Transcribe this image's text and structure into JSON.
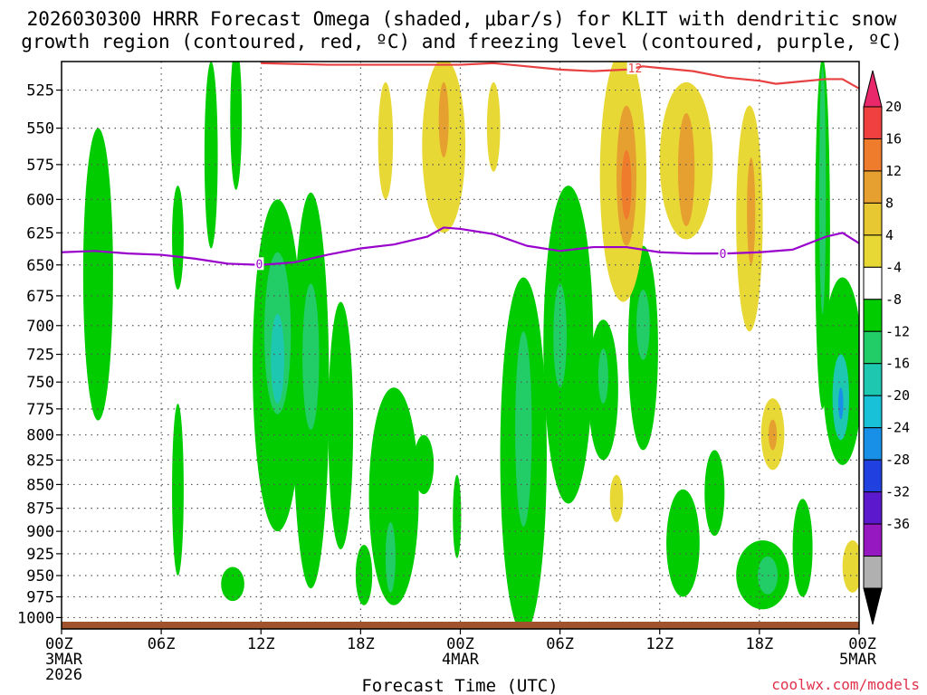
{
  "chart_data": {
    "type": "heatmap",
    "title_line1": "2026030300 HRRR Forecast Omega (shaded, μbar/s) for KLIT with dendritic snow",
    "title_line2": "growth region (contoured, red, ºC) and freezing level (contoured, purple, ºC)",
    "xlabel": "Forecast Time (UTC)",
    "credit": "coolwx.com/models",
    "y_ticks": [
      525,
      550,
      575,
      600,
      625,
      650,
      675,
      700,
      725,
      750,
      775,
      800,
      825,
      850,
      875,
      900,
      925,
      950,
      975,
      1000
    ],
    "y_range_hpa": [
      507,
      1014
    ],
    "x_range_hours": [
      0,
      48
    ],
    "x_ticks": [
      {
        "hour": 0,
        "line1": "00Z",
        "line2": "3MAR",
        "line3": "2026"
      },
      {
        "hour": 6,
        "line1": "06Z",
        "line2": "",
        "line3": ""
      },
      {
        "hour": 12,
        "line1": "12Z",
        "line2": "",
        "line3": ""
      },
      {
        "hour": 18,
        "line1": "18Z",
        "line2": "",
        "line3": ""
      },
      {
        "hour": 24,
        "line1": "00Z",
        "line2": "4MAR",
        "line3": ""
      },
      {
        "hour": 30,
        "line1": "06Z",
        "line2": "",
        "line3": ""
      },
      {
        "hour": 36,
        "line1": "12Z",
        "line2": "",
        "line3": ""
      },
      {
        "hour": 42,
        "line1": "18Z",
        "line2": "",
        "line3": ""
      },
      {
        "hour": 48,
        "line1": "00Z",
        "line2": "5MAR",
        "line3": ""
      }
    ],
    "colorbar_labels": [
      20,
      16,
      12,
      8,
      4,
      -4,
      -8,
      -12,
      -16,
      -20,
      -24,
      -28,
      -32,
      -36
    ],
    "colorbar_colors": [
      "#e8286a",
      "#f04040",
      "#ee7c2c",
      "#e6a030",
      "#e8c832",
      "#e8d836",
      "#ffffff",
      "#00cc00",
      "#22cc66",
      "#1ec8b0",
      "#18c0d8",
      "#1890e8",
      "#2040e0",
      "#5c18cc",
      "#9618c0",
      "#b0b0b0",
      "#000000"
    ],
    "omega_colors": {
      "rise_weak": "#00cc00",
      "rise_mod": "#22cc66",
      "rise_str": "#1ec8b0",
      "rise_vstr": "#18c0d8",
      "rise_max": "#1890e8",
      "sink_weak": "#e8d836",
      "sink_mod": "#e6a030",
      "sink_str": "#ee7c2c"
    },
    "freezing_level": {
      "color": "#9900cc",
      "label": "0",
      "points": [
        [
          0,
          640
        ],
        [
          2,
          639
        ],
        [
          4,
          641
        ],
        [
          6,
          642
        ],
        [
          8,
          645
        ],
        [
          10,
          649
        ],
        [
          12,
          650
        ],
        [
          14,
          648
        ],
        [
          16,
          642
        ],
        [
          18,
          637
        ],
        [
          20,
          634
        ],
        [
          22,
          628
        ],
        [
          23,
          621
        ],
        [
          24,
          622
        ],
        [
          26,
          626
        ],
        [
          28,
          635
        ],
        [
          30,
          639
        ],
        [
          32,
          636
        ],
        [
          34,
          636
        ],
        [
          36,
          640
        ],
        [
          38,
          641
        ],
        [
          40,
          641
        ],
        [
          42,
          640
        ],
        [
          44,
          638
        ],
        [
          46,
          628
        ],
        [
          47,
          625
        ],
        [
          48,
          633
        ]
      ],
      "label_points": [
        [
          11.9,
          649
        ],
        [
          39.8,
          641
        ]
      ]
    },
    "dgz_contour": {
      "color": "#e84040",
      "label": "-12",
      "points": [
        [
          12,
          508
        ],
        [
          16,
          509
        ],
        [
          20,
          509
        ],
        [
          24,
          509
        ],
        [
          26,
          508
        ],
        [
          28,
          510
        ],
        [
          30,
          512
        ],
        [
          32,
          513
        ],
        [
          34,
          512
        ],
        [
          35,
          510
        ],
        [
          36,
          511
        ],
        [
          38,
          513
        ],
        [
          40,
          517
        ],
        [
          42,
          519
        ],
        [
          43,
          521
        ],
        [
          44,
          520
        ],
        [
          46,
          518
        ],
        [
          47,
          518
        ],
        [
          48,
          524
        ]
      ],
      "label_points": [
        [
          34.3,
          511
        ]
      ]
    },
    "omega_regions": [
      {
        "level": "rise_weak",
        "hour": 2.2,
        "p_center": 668,
        "p_halfwidth": 118,
        "h_halfwidth": 0.9
      },
      {
        "level": "rise_weak",
        "hour": 7.0,
        "p_center": 630,
        "p_halfwidth": 40,
        "h_halfwidth": 0.35
      },
      {
        "level": "rise_weak",
        "hour": 7.0,
        "p_center": 860,
        "p_halfwidth": 90,
        "h_halfwidth": 0.35
      },
      {
        "level": "rise_weak",
        "hour": 9.0,
        "p_center": 572,
        "p_halfwidth": 65,
        "h_halfwidth": 0.4
      },
      {
        "level": "rise_weak",
        "hour": 10.5,
        "p_center": 545,
        "p_halfwidth": 48,
        "h_halfwidth": 0.35
      },
      {
        "level": "rise_weak",
        "hour": 10.3,
        "p_center": 960,
        "p_halfwidth": 20,
        "h_halfwidth": 0.7
      },
      {
        "level": "rise_weak",
        "hour": 13.0,
        "p_center": 750,
        "p_halfwidth": 150,
        "h_halfwidth": 1.5
      },
      {
        "level": "rise_mod",
        "hour": 13.0,
        "p_center": 710,
        "p_halfwidth": 70,
        "h_halfwidth": 0.8
      },
      {
        "level": "rise_str",
        "hour": 13.0,
        "p_center": 730,
        "p_halfwidth": 40,
        "h_halfwidth": 0.4
      },
      {
        "level": "rise_weak",
        "hour": 15.0,
        "p_center": 780,
        "p_halfwidth": 185,
        "h_halfwidth": 1.1
      },
      {
        "level": "rise_mod",
        "hour": 15.0,
        "p_center": 730,
        "p_halfwidth": 65,
        "h_halfwidth": 0.5
      },
      {
        "level": "rise_weak",
        "hour": 16.8,
        "p_center": 800,
        "p_halfwidth": 120,
        "h_halfwidth": 0.75
      },
      {
        "level": "rise_weak",
        "hour": 20.0,
        "p_center": 870,
        "p_halfwidth": 115,
        "h_halfwidth": 1.5
      },
      {
        "level": "rise_mod",
        "hour": 19.8,
        "p_center": 930,
        "p_halfwidth": 40,
        "h_halfwidth": 0.3
      },
      {
        "level": "rise_weak",
        "hour": 21.8,
        "p_center": 830,
        "p_halfwidth": 30,
        "h_halfwidth": 0.6
      },
      {
        "level": "rise_weak",
        "hour": 18.2,
        "p_center": 950,
        "p_halfwidth": 35,
        "h_halfwidth": 0.5
      },
      {
        "level": "rise_weak",
        "hour": 23.8,
        "p_center": 885,
        "p_halfwidth": 45,
        "h_halfwidth": 0.25
      },
      {
        "level": "rise_weak",
        "hour": 27.8,
        "p_center": 840,
        "p_halfwidth": 180,
        "h_halfwidth": 1.4
      },
      {
        "level": "rise_mod",
        "hour": 27.8,
        "p_center": 800,
        "p_halfwidth": 95,
        "h_halfwidth": 0.5
      },
      {
        "level": "rise_weak",
        "hour": 30.5,
        "p_center": 730,
        "p_halfwidth": 140,
        "h_halfwidth": 1.5
      },
      {
        "level": "rise_mod",
        "hour": 30.0,
        "p_center": 710,
        "p_halfwidth": 45,
        "h_halfwidth": 0.4
      },
      {
        "level": "rise_weak",
        "hour": 32.6,
        "p_center": 760,
        "p_halfwidth": 65,
        "h_halfwidth": 0.9
      },
      {
        "level": "rise_mod",
        "hour": 32.6,
        "p_center": 745,
        "p_halfwidth": 25,
        "h_halfwidth": 0.3
      },
      {
        "level": "rise_weak",
        "hour": 35.0,
        "p_center": 725,
        "p_halfwidth": 90,
        "h_halfwidth": 0.9
      },
      {
        "level": "rise_mod",
        "hour": 35.0,
        "p_center": 700,
        "p_halfwidth": 30,
        "h_halfwidth": 0.4
      },
      {
        "level": "rise_weak",
        "hour": 37.4,
        "p_center": 915,
        "p_halfwidth": 60,
        "h_halfwidth": 1.0
      },
      {
        "level": "rise_weak",
        "hour": 39.3,
        "p_center": 860,
        "p_halfwidth": 45,
        "h_halfwidth": 0.6
      },
      {
        "level": "rise_weak",
        "hour": 42.2,
        "p_center": 950,
        "p_halfwidth": 40,
        "h_halfwidth": 1.6
      },
      {
        "level": "rise_mod",
        "hour": 42.5,
        "p_center": 950,
        "p_halfwidth": 22,
        "h_halfwidth": 0.6
      },
      {
        "level": "rise_weak",
        "hour": 44.6,
        "p_center": 920,
        "p_halfwidth": 55,
        "h_halfwidth": 0.6
      },
      {
        "level": "rise_weak",
        "hour": 45.8,
        "p_center": 640,
        "p_halfwidth": 135,
        "h_halfwidth": 0.45
      },
      {
        "level": "rise_mod",
        "hour": 45.8,
        "p_center": 600,
        "p_halfwidth": 90,
        "h_halfwidth": 0.2
      },
      {
        "level": "rise_weak",
        "hour": 47.0,
        "p_center": 745,
        "p_halfwidth": 85,
        "h_halfwidth": 1.2
      },
      {
        "level": "rise_str",
        "hour": 46.9,
        "p_center": 765,
        "p_halfwidth": 40,
        "h_halfwidth": 0.5
      },
      {
        "level": "rise_max",
        "hour": 46.9,
        "p_center": 770,
        "p_halfwidth": 15,
        "h_halfwidth": 0.15
      },
      {
        "level": "sink_weak",
        "hour": 19.5,
        "p_center": 560,
        "p_halfwidth": 40,
        "h_halfwidth": 0.45
      },
      {
        "level": "sink_weak",
        "hour": 23.0,
        "p_center": 565,
        "p_halfwidth": 60,
        "h_halfwidth": 1.3
      },
      {
        "level": "sink_mod",
        "hour": 23.0,
        "p_center": 545,
        "p_halfwidth": 25,
        "h_halfwidth": 0.3
      },
      {
        "level": "sink_weak",
        "hour": 26.0,
        "p_center": 550,
        "p_halfwidth": 30,
        "h_halfwidth": 0.4
      },
      {
        "level": "sink_weak",
        "hour": 33.8,
        "p_center": 590,
        "p_halfwidth": 90,
        "h_halfwidth": 1.4
      },
      {
        "level": "sink_mod",
        "hour": 34.0,
        "p_center": 585,
        "p_halfwidth": 50,
        "h_halfwidth": 0.6
      },
      {
        "level": "sink_str",
        "hour": 34.0,
        "p_center": 590,
        "p_halfwidth": 25,
        "h_halfwidth": 0.3
      },
      {
        "level": "sink_weak",
        "hour": 37.6,
        "p_center": 575,
        "p_halfwidth": 55,
        "h_halfwidth": 1.6
      },
      {
        "level": "sink_mod",
        "hour": 37.6,
        "p_center": 580,
        "p_halfwidth": 40,
        "h_halfwidth": 0.5
      },
      {
        "level": "sink_weak",
        "hour": 41.4,
        "p_center": 620,
        "p_halfwidth": 85,
        "h_halfwidth": 0.8
      },
      {
        "level": "sink_mod",
        "hour": 41.5,
        "p_center": 610,
        "p_halfwidth": 40,
        "h_halfwidth": 0.25
      },
      {
        "level": "sink_weak",
        "hour": 42.8,
        "p_center": 800,
        "p_halfwidth": 35,
        "h_halfwidth": 0.7
      },
      {
        "level": "sink_mod",
        "hour": 42.8,
        "p_center": 800,
        "p_halfwidth": 15,
        "h_halfwidth": 0.25
      },
      {
        "level": "sink_weak",
        "hour": 33.4,
        "p_center": 865,
        "p_halfwidth": 25,
        "h_halfwidth": 0.4
      },
      {
        "level": "sink_weak",
        "hour": 47.6,
        "p_center": 940,
        "p_halfwidth": 30,
        "h_halfwidth": 0.6
      }
    ]
  }
}
